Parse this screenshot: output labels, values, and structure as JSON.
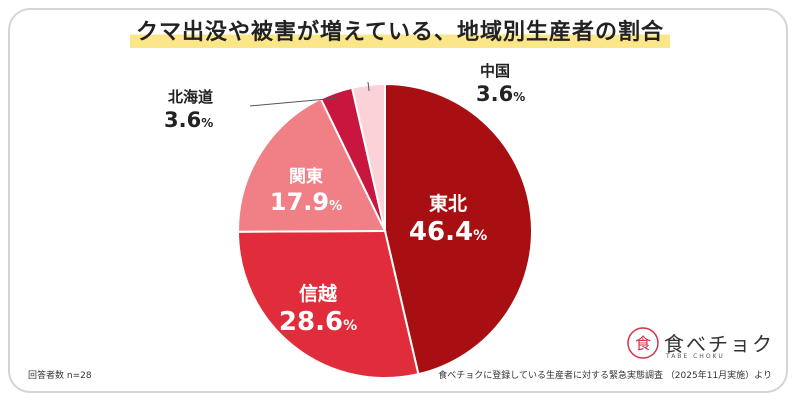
{
  "title": "クマ出没や被害が増えている、地域別生産者の割合",
  "chart_data": {
    "type": "pie",
    "title": "クマ出没や被害が増えている、地域別生産者の割合",
    "slices": [
      {
        "label": "東北",
        "value": 46.4,
        "display": "46.4",
        "color": "#a80f12"
      },
      {
        "label": "信越",
        "value": 28.6,
        "display": "28.6",
        "color": "#e12d3b"
      },
      {
        "label": "関東",
        "value": 17.9,
        "display": "17.9",
        "color": "#f07f86"
      },
      {
        "label": "北海道",
        "value": 3.6,
        "display": "3.6",
        "color": "#c8163f"
      },
      {
        "label": "中国",
        "value": 3.6,
        "display": "3.6",
        "color": "#fbd2d7"
      }
    ],
    "unit": "%"
  },
  "footnote_left": "回答者数 n=28",
  "footnote_right": "食べチョクに登録している生産者に対する緊急実態調査 （2025年11月実施）より",
  "logo": {
    "main": "食べチョク",
    "sub": "TABE CHOKU",
    "mark_text": "食"
  }
}
